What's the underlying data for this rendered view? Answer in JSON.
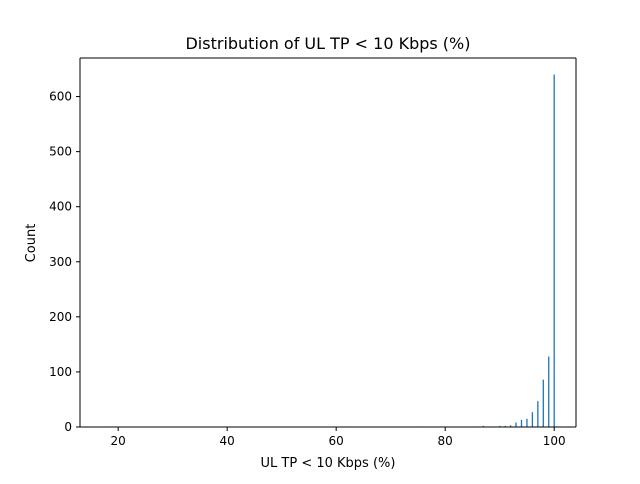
{
  "chart_data": {
    "type": "bar",
    "title": "Distribution of UL TP < 10 Kbps (%)",
    "xlabel": "UL TP < 10 Kbps (%)",
    "ylabel": "Count",
    "xlim": [
      13,
      104
    ],
    "ylim": [
      0,
      670
    ],
    "x_ticks": [
      20,
      40,
      60,
      80,
      100
    ],
    "y_ticks": [
      0,
      100,
      200,
      300,
      400,
      500,
      600
    ],
    "grid": false,
    "bar_color": "#1f77b4",
    "bins": [
      {
        "x": 18,
        "count": 1
      },
      {
        "x": 62,
        "count": 1
      },
      {
        "x": 76,
        "count": 1
      },
      {
        "x": 86,
        "count": 1
      },
      {
        "x": 87,
        "count": 2
      },
      {
        "x": 88,
        "count": 1
      },
      {
        "x": 90,
        "count": 2
      },
      {
        "x": 91,
        "count": 2
      },
      {
        "x": 92,
        "count": 3
      },
      {
        "x": 93,
        "count": 8
      },
      {
        "x": 94,
        "count": 13
      },
      {
        "x": 95,
        "count": 15
      },
      {
        "x": 96,
        "count": 27
      },
      {
        "x": 97,
        "count": 47
      },
      {
        "x": 98,
        "count": 86
      },
      {
        "x": 99,
        "count": 128
      },
      {
        "x": 100,
        "count": 640
      }
    ]
  }
}
